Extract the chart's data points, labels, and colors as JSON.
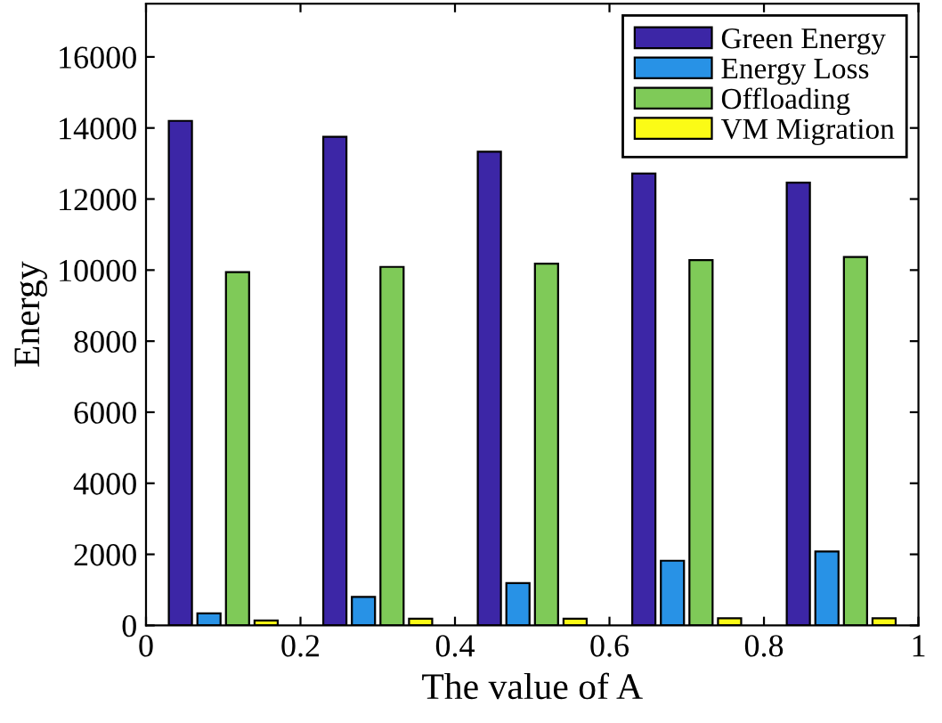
{
  "chart_data": {
    "type": "bar",
    "xlabel": "The value of A",
    "ylabel": "Energy",
    "x": [
      0.1,
      0.3,
      0.5,
      0.7,
      0.9
    ],
    "series": [
      {
        "name": "Green Energy",
        "color": "#3c26a6",
        "values": [
          14200,
          13750,
          13330,
          12720,
          12460
        ]
      },
      {
        "name": "Energy Loss",
        "color": "#2892e6",
        "values": [
          340,
          800,
          1190,
          1820,
          2080
        ]
      },
      {
        "name": "Offloading",
        "color": "#7fca58",
        "values": [
          9940,
          10090,
          10180,
          10280,
          10370
        ]
      },
      {
        "name": "VM Migration",
        "color": "#fbfb16",
        "values": [
          140,
          190,
          190,
          200,
          200
        ]
      }
    ],
    "xlim": [
      0,
      1
    ],
    "xticks": [
      0,
      0.2,
      0.4,
      0.6,
      0.8,
      1
    ],
    "ylim": [
      0,
      17500
    ],
    "yticks": [
      0,
      2000,
      4000,
      6000,
      8000,
      10000,
      12000,
      14000,
      16000
    ],
    "grid": false,
    "legend": "top right"
  }
}
